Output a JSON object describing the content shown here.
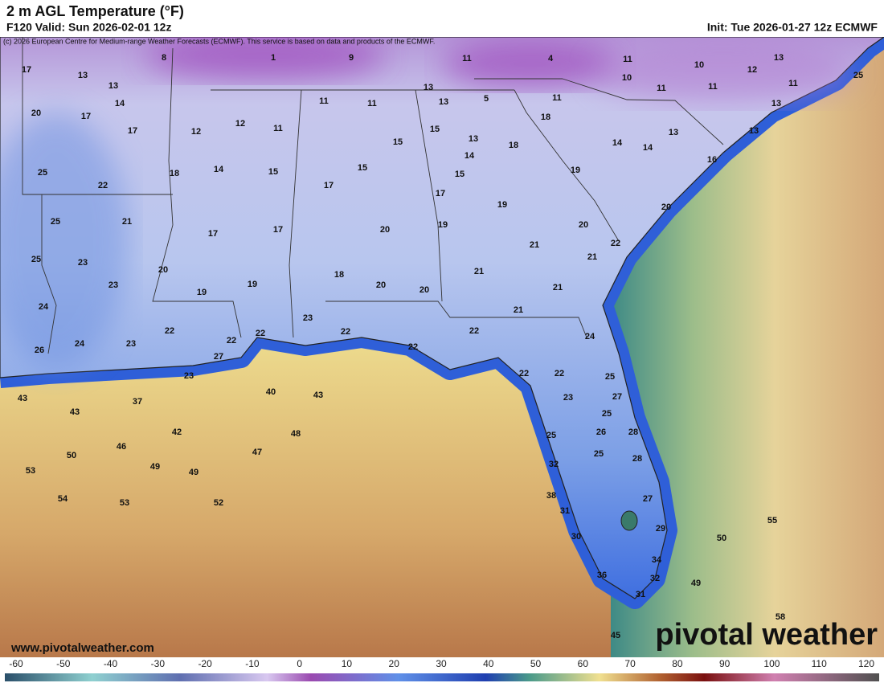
{
  "header": {
    "title": "2 m AGL Temperature (°F)",
    "valid": "F120 Valid: Sun 2026-02-01 12z",
    "init": "Init: Tue 2026-01-27 12z ECMWF",
    "credit": "(c) 2026 European Centre for Medium-range Weather Forecasts (ECMWF). This service is based on data and products of the ECMWF."
  },
  "map": {
    "labels": [
      17,
      13,
      13,
      14,
      20,
      17,
      17,
      8,
      1,
      9,
      11,
      4,
      11,
      10,
      13,
      12,
      25,
      10,
      11,
      11,
      11,
      13,
      13,
      11,
      11,
      13,
      5,
      11,
      18,
      12,
      12,
      11,
      15,
      13,
      15,
      18,
      14,
      14,
      13,
      13,
      16,
      25,
      22,
      18,
      14,
      15,
      15,
      14,
      15,
      19,
      17,
      17,
      19,
      20,
      25,
      21,
      17,
      17,
      20,
      19,
      20,
      21,
      22,
      21,
      25,
      23,
      23,
      20,
      19,
      19,
      18,
      20,
      20,
      21,
      21,
      24,
      21,
      23,
      22,
      22,
      22,
      22,
      22,
      24,
      26,
      24,
      23,
      27,
      22,
      23,
      22,
      22,
      25,
      23,
      27,
      43,
      37,
      40,
      43,
      43,
      25,
      42,
      48,
      26,
      28,
      25,
      46,
      50,
      47,
      25,
      28,
      32,
      53,
      49,
      49,
      38,
      27,
      54,
      53,
      52,
      31,
      55,
      29,
      30,
      50,
      34,
      36,
      32,
      49,
      31,
      58,
      45
    ]
  },
  "colorbar": {
    "ticks": [
      -60,
      -50,
      -40,
      -30,
      -20,
      -10,
      0,
      10,
      20,
      30,
      40,
      50,
      60,
      70,
      80,
      90,
      100,
      110,
      120
    ]
  },
  "footer": {
    "website": "www.pivotalweather.com",
    "logo": "pivotal weather"
  }
}
